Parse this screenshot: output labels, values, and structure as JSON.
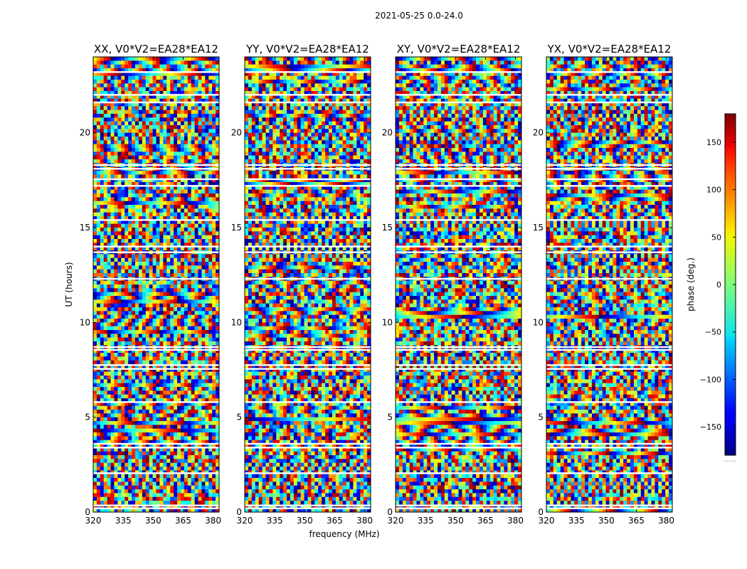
{
  "figure": {
    "suptitle": "2021-05-25 0.0-24.0"
  },
  "chart_data": {
    "type": "heatmap",
    "panels": [
      {
        "title": "XX, V0*V2=EA28*EA12",
        "pol": "XX"
      },
      {
        "title": "YY, V0*V2=EA28*EA12",
        "pol": "YY"
      },
      {
        "title": "XY, V0*V2=EA28*EA12",
        "pol": "XY"
      },
      {
        "title": "YX, V0*V2=EA28*EA12",
        "pol": "YX"
      }
    ],
    "xlabel": "frequency (MHz)",
    "ylabel": "UT (hours)",
    "xlim": [
      320,
      383
    ],
    "ylim": [
      0,
      24
    ],
    "xticks": [
      320,
      335,
      350,
      365,
      380
    ],
    "yticks": [
      0,
      5,
      10,
      15,
      20
    ],
    "colorbar": {
      "label": "phase (deg.)",
      "range": [
        -180,
        180
      ],
      "ticks": [
        -150,
        -100,
        -50,
        0,
        50,
        100,
        150
      ],
      "colormap": "jet",
      "footnote": "....."
    },
    "grid": false,
    "flagged_gaps_hours": [
      0.2,
      0.35,
      2.05,
      3.4,
      3.6,
      5.8,
      7.55,
      7.75,
      8.55,
      8.7,
      12.3,
      13.7,
      14.0,
      15.4,
      17.2,
      17.55,
      18.1,
      18.3,
      21.6,
      22.0,
      23.2
    ]
  }
}
